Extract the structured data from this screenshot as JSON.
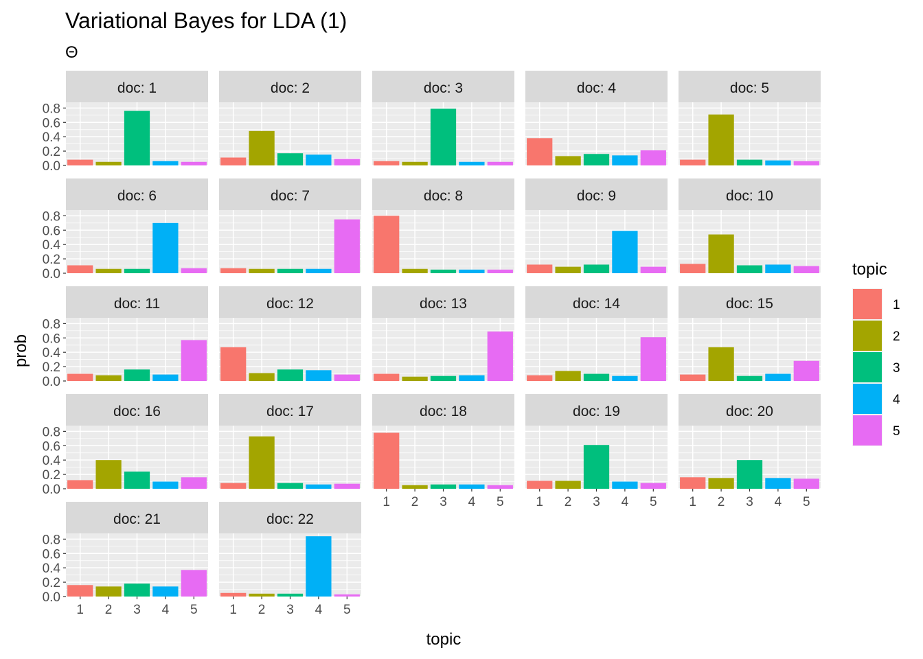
{
  "title": "Variational Bayes for LDA (1)",
  "subtitle": "Θ",
  "chart_data": {
    "type": "bar",
    "facet_label_prefix": "doc: ",
    "xlabel": "topic",
    "ylabel": "prob",
    "categories": [
      "1",
      "2",
      "3",
      "4",
      "5"
    ],
    "ylim": [
      0,
      0.88
    ],
    "yticks": [
      0.0,
      0.2,
      0.4,
      0.6,
      0.8
    ],
    "ytick_labels": [
      "0.0",
      "0.2",
      "0.4",
      "0.6",
      "0.8"
    ],
    "grid": true,
    "legend": {
      "title": "topic",
      "position": "right",
      "entries": [
        "1",
        "2",
        "3",
        "4",
        "5"
      ]
    },
    "colors": [
      "#F8766D",
      "#A3A500",
      "#00BF7D",
      "#00B0F6",
      "#E76BF3"
    ],
    "panel_background": "#EBEBEB",
    "strip_background": "#D9D9D9",
    "facets": [
      {
        "doc": "1",
        "values": [
          0.08,
          0.05,
          0.76,
          0.06,
          0.05
        ]
      },
      {
        "doc": "2",
        "values": [
          0.11,
          0.48,
          0.17,
          0.15,
          0.09
        ]
      },
      {
        "doc": "3",
        "values": [
          0.06,
          0.05,
          0.79,
          0.05,
          0.05
        ]
      },
      {
        "doc": "4",
        "values": [
          0.38,
          0.13,
          0.16,
          0.14,
          0.21
        ]
      },
      {
        "doc": "5",
        "values": [
          0.08,
          0.71,
          0.08,
          0.07,
          0.06
        ]
      },
      {
        "doc": "6",
        "values": [
          0.11,
          0.06,
          0.06,
          0.7,
          0.07
        ]
      },
      {
        "doc": "7",
        "values": [
          0.07,
          0.06,
          0.06,
          0.06,
          0.75
        ]
      },
      {
        "doc": "8",
        "values": [
          0.8,
          0.06,
          0.05,
          0.05,
          0.05
        ]
      },
      {
        "doc": "9",
        "values": [
          0.12,
          0.09,
          0.12,
          0.59,
          0.09
        ]
      },
      {
        "doc": "10",
        "values": [
          0.13,
          0.54,
          0.11,
          0.12,
          0.1
        ]
      },
      {
        "doc": "11",
        "values": [
          0.1,
          0.08,
          0.16,
          0.09,
          0.57
        ]
      },
      {
        "doc": "12",
        "values": [
          0.47,
          0.11,
          0.16,
          0.15,
          0.09
        ]
      },
      {
        "doc": "13",
        "values": [
          0.1,
          0.06,
          0.07,
          0.08,
          0.69
        ]
      },
      {
        "doc": "14",
        "values": [
          0.08,
          0.14,
          0.1,
          0.07,
          0.61
        ]
      },
      {
        "doc": "15",
        "values": [
          0.09,
          0.47,
          0.07,
          0.1,
          0.28
        ]
      },
      {
        "doc": "16",
        "values": [
          0.12,
          0.4,
          0.24,
          0.1,
          0.16
        ]
      },
      {
        "doc": "17",
        "values": [
          0.08,
          0.73,
          0.08,
          0.06,
          0.07
        ]
      },
      {
        "doc": "18",
        "values": [
          0.78,
          0.05,
          0.06,
          0.06,
          0.05
        ]
      },
      {
        "doc": "19",
        "values": [
          0.11,
          0.11,
          0.61,
          0.1,
          0.08
        ]
      },
      {
        "doc": "20",
        "values": [
          0.16,
          0.15,
          0.4,
          0.15,
          0.14
        ]
      },
      {
        "doc": "21",
        "values": [
          0.16,
          0.14,
          0.18,
          0.14,
          0.37
        ]
      },
      {
        "doc": "22",
        "values": [
          0.05,
          0.04,
          0.04,
          0.84,
          0.03
        ]
      }
    ]
  }
}
